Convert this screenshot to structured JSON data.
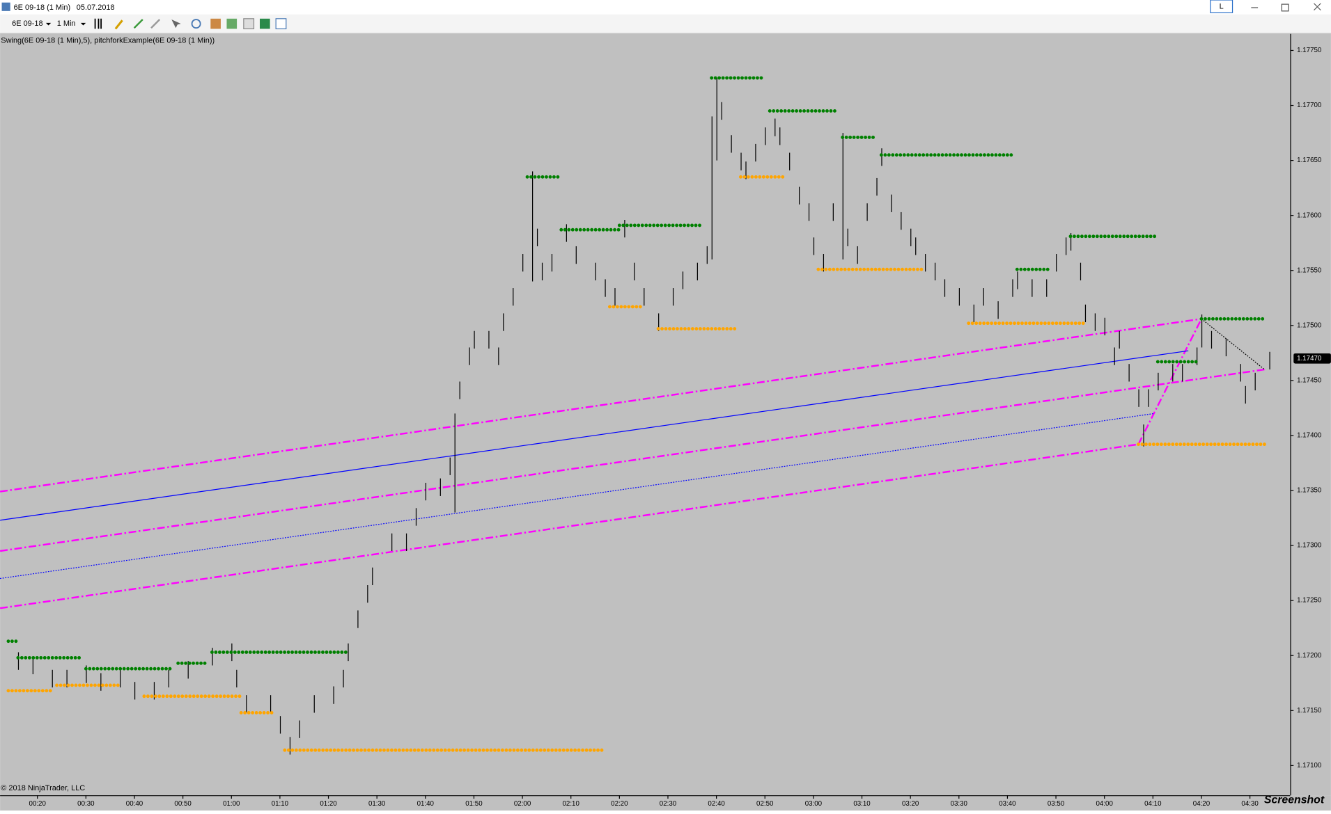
{
  "window": {
    "title": "6E 09-18 (1 Min)",
    "date": "05.07.2018",
    "button": "L"
  },
  "toolbar": {
    "instrument": "6E 09-18",
    "interval": "1 Min"
  },
  "indicators": "Swing(6E 09-18 (1 Min),5), pitchforkExample(6E 09-18 (1 Min))",
  "copyright": "© 2018 NinjaTrader, LLC",
  "watermark": "Screenshot",
  "chart_data": {
    "type": "ohlc",
    "background": "#c0c0c0",
    "bar_color": "#000000",
    "xlim": [
      12.3,
      278.3
    ],
    "ylim": [
      1.17073,
      1.17765
    ],
    "xticks": [
      {
        "value": 20,
        "label": "00:20"
      },
      {
        "value": 30,
        "label": "00:30"
      },
      {
        "value": 40,
        "label": "00:40"
      },
      {
        "value": 50,
        "label": "00:50"
      },
      {
        "value": 60,
        "label": "01:00"
      },
      {
        "value": 70,
        "label": "01:10"
      },
      {
        "value": 80,
        "label": "01:20"
      },
      {
        "value": 90,
        "label": "01:30"
      },
      {
        "value": 100,
        "label": "01:40"
      },
      {
        "value": 110,
        "label": "01:50"
      },
      {
        "value": 120,
        "label": "02:00"
      },
      {
        "value": 130,
        "label": "02:10"
      },
      {
        "value": 140,
        "label": "02:20"
      },
      {
        "value": 150,
        "label": "02:30"
      },
      {
        "value": 160,
        "label": "02:40"
      },
      {
        "value": 170,
        "label": "02:50"
      },
      {
        "value": 180,
        "label": "03:00"
      },
      {
        "value": 190,
        "label": "03:10"
      },
      {
        "value": 200,
        "label": "03:20"
      },
      {
        "value": 210,
        "label": "03:30"
      },
      {
        "value": 220,
        "label": "03:40"
      },
      {
        "value": 230,
        "label": "03:50"
      },
      {
        "value": 240,
        "label": "04:00"
      },
      {
        "value": 250,
        "label": "04:10"
      },
      {
        "value": 260,
        "label": "04:20"
      },
      {
        "value": 270,
        "label": "04:30"
      }
    ],
    "yticks": [
      {
        "value": 1.171,
        "label": "1.17100"
      },
      {
        "value": 1.1715,
        "label": "1.17150"
      },
      {
        "value": 1.172,
        "label": "1.17200"
      },
      {
        "value": 1.1725,
        "label": "1.17250"
      },
      {
        "value": 1.173,
        "label": "1.17300"
      },
      {
        "value": 1.1735,
        "label": "1.17350"
      },
      {
        "value": 1.174,
        "label": "1.17400"
      },
      {
        "value": 1.1745,
        "label": "1.17450"
      },
      {
        "value": 1.175,
        "label": "1.17500"
      },
      {
        "value": 1.1755,
        "label": "1.17550"
      },
      {
        "value": 1.176,
        "label": "1.17600"
      },
      {
        "value": 1.1765,
        "label": "1.17650"
      },
      {
        "value": 1.177,
        "label": "1.17700"
      },
      {
        "value": 1.1775,
        "label": "1.17750"
      }
    ],
    "last_price": {
      "value": 1.1747,
      "label": "1.17470"
    },
    "x": [
      16,
      19,
      23,
      26,
      30,
      33,
      37,
      40,
      44,
      47,
      51,
      56,
      60,
      61,
      63,
      68,
      70,
      72,
      74,
      77,
      81,
      83,
      84,
      86,
      88,
      89,
      93,
      96,
      98,
      100,
      103,
      105,
      106,
      107,
      109,
      110,
      113,
      115,
      116,
      118,
      120,
      122,
      123,
      124,
      126,
      129,
      131,
      135,
      137,
      139,
      141,
      143,
      145,
      148,
      151,
      153,
      156,
      158,
      159,
      160,
      161,
      163,
      165,
      166,
      168,
      170,
      172,
      173,
      175,
      177,
      179,
      180,
      182,
      184,
      186,
      187,
      189,
      191,
      193,
      194,
      196,
      198,
      200,
      201,
      203,
      205,
      207,
      210,
      213,
      215,
      218,
      221,
      222,
      225,
      228,
      230,
      232,
      233,
      235,
      236,
      238,
      240,
      242,
      243,
      245,
      247,
      248,
      249,
      251,
      254,
      256,
      259,
      260,
      262,
      265,
      268,
      269,
      271,
      274
    ],
    "high": [
      1.17203,
      1.17199,
      1.17187,
      1.17187,
      1.17191,
      1.17184,
      1.17187,
      1.17176,
      1.17176,
      1.17187,
      1.17195,
      1.17207,
      1.17211,
      1.17187,
      1.17164,
      1.17164,
      1.17145,
      1.17126,
      1.17141,
      1.17164,
      1.17172,
      1.17187,
      1.17211,
      1.17241,
      1.17264,
      1.1728,
      1.17311,
      1.17311,
      1.17334,
      1.17357,
      1.17361,
      1.1738,
      1.1742,
      1.17449,
      1.1748,
      1.17495,
      1.17495,
      1.1748,
      1.17511,
      1.17534,
      1.17565,
      1.1764,
      1.17588,
      1.17557,
      1.17565,
      1.17592,
      1.17572,
      1.17557,
      1.17542,
      1.17534,
      1.17596,
      1.17557,
      1.17534,
      1.17511,
      1.17534,
      1.17549,
      1.17557,
      1.17572,
      1.1769,
      1.17725,
      1.17703,
      1.17673,
      1.17657,
      1.17649,
      1.17665,
      1.1768,
      1.17688,
      1.1768,
      1.17657,
      1.17626,
      1.17611,
      1.1758,
      1.17565,
      1.17611,
      1.17675,
      1.17588,
      1.17572,
      1.17611,
      1.17634,
      1.17661,
      1.17619,
      1.17603,
      1.17588,
      1.1758,
      1.17565,
      1.17557,
      1.17542,
      1.17534,
      1.17519,
      1.17534,
      1.17522,
      1.17542,
      1.17549,
      1.17542,
      1.17542,
      1.17565,
      1.1758,
      1.17584,
      1.17557,
      1.17519,
      1.17511,
      1.17507,
      1.1748,
      1.17495,
      1.17465,
      1.17442,
      1.1741,
      1.17442,
      1.17457,
      1.17465,
      1.17465,
      1.1748,
      1.1751,
      1.17495,
      1.17488,
      1.17465,
      1.17445,
      1.17457,
      1.17476
    ],
    "low": [
      1.17187,
      1.17183,
      1.17171,
      1.17171,
      1.17175,
      1.17168,
      1.17171,
      1.1716,
      1.1716,
      1.17171,
      1.17179,
      1.17191,
      1.17195,
      1.17171,
      1.17148,
      1.17148,
      1.17129,
      1.1711,
      1.17125,
      1.17148,
      1.17156,
      1.17171,
      1.17195,
      1.17225,
      1.17248,
      1.17264,
      1.17295,
      1.17295,
      1.17318,
      1.17341,
      1.17345,
      1.17364,
      1.1733,
      1.17433,
      1.17464,
      1.17479,
      1.17479,
      1.17464,
      1.17495,
      1.17518,
      1.17549,
      1.1754,
      1.17572,
      1.17541,
      1.17549,
      1.17576,
      1.17556,
      1.17541,
      1.17526,
      1.17518,
      1.1758,
      1.17541,
      1.17518,
      1.17495,
      1.17518,
      1.17533,
      1.17541,
      1.17556,
      1.1756,
      1.1765,
      1.17687,
      1.17657,
      1.17641,
      1.17633,
      1.17649,
      1.17664,
      1.17672,
      1.17664,
      1.17641,
      1.1761,
      1.17595,
      1.17564,
      1.17549,
      1.17595,
      1.1756,
      1.17572,
      1.17556,
      1.17595,
      1.17618,
      1.17645,
      1.17603,
      1.17587,
      1.17572,
      1.17564,
      1.17549,
      1.17541,
      1.17526,
      1.17518,
      1.17503,
      1.17518,
      1.17506,
      1.17526,
      1.17533,
      1.17526,
      1.17526,
      1.17549,
      1.17564,
      1.17568,
      1.17541,
      1.17503,
      1.17495,
      1.17491,
      1.17464,
      1.17479,
      1.17449,
      1.17426,
      1.1739,
      1.17426,
      1.17441,
      1.17449,
      1.17449,
      1.17464,
      1.1748,
      1.17479,
      1.17472,
      1.17449,
      1.17429,
      1.17441,
      1.1746
    ],
    "swing_high_color": "#008000",
    "swing_low_color": "#ffa500",
    "swing_highs": [
      {
        "price": 1.17213,
        "from": 14,
        "to": 16
      },
      {
        "price": 1.17198,
        "from": 16,
        "to": 29
      },
      {
        "price": 1.17188,
        "from": 30,
        "to": 48
      },
      {
        "price": 1.17193,
        "from": 49,
        "to": 55
      },
      {
        "price": 1.17203,
        "from": 56,
        "to": 84
      },
      {
        "price": 1.17635,
        "from": 121,
        "to": 128
      },
      {
        "price": 1.17587,
        "from": 128,
        "to": 140
      },
      {
        "price": 1.17591,
        "from": 140,
        "to": 157
      },
      {
        "price": 1.17725,
        "from": 159,
        "to": 170
      },
      {
        "price": 1.17695,
        "from": 171,
        "to": 185
      },
      {
        "price": 1.17671,
        "from": 186,
        "to": 193
      },
      {
        "price": 1.17655,
        "from": 194,
        "to": 221
      },
      {
        "price": 1.17551,
        "from": 222,
        "to": 229
      },
      {
        "price": 1.17581,
        "from": 233,
        "to": 251
      },
      {
        "price": 1.17467,
        "from": 251,
        "to": 259
      },
      {
        "price": 1.17506,
        "from": 260,
        "to": 273
      }
    ],
    "swing_lows": [
      {
        "price": 1.17168,
        "from": 14,
        "to": 23
      },
      {
        "price": 1.17173,
        "from": 24,
        "to": 37
      },
      {
        "price": 1.17163,
        "from": 42,
        "to": 62
      },
      {
        "price": 1.17148,
        "from": 62,
        "to": 69
      },
      {
        "price": 1.17114,
        "from": 71,
        "to": 137
      },
      {
        "price": 1.17517,
        "from": 138,
        "to": 145
      },
      {
        "price": 1.17497,
        "from": 148,
        "to": 164
      },
      {
        "price": 1.17635,
        "from": 165,
        "to": 174
      },
      {
        "price": 1.17551,
        "from": 181,
        "to": 203
      },
      {
        "price": 1.17502,
        "from": 212,
        "to": 236
      },
      {
        "price": 1.17392,
        "from": 247,
        "to": 273
      }
    ],
    "pitchfork": [
      {
        "x": [
          12.3,
          260
        ],
        "y": [
          1.17349,
          1.17506
        ],
        "color": "#ff00ff",
        "style": "dashdot"
      },
      {
        "x": [
          12.3,
          273
        ],
        "y": [
          1.17295,
          1.1746
        ],
        "color": "#ff00ff",
        "style": "dashdot"
      },
      {
        "x": [
          12.3,
          247
        ],
        "y": [
          1.17243,
          1.17392
        ],
        "color": "#ff00ff",
        "style": "dashdot"
      },
      {
        "x": [
          247,
          260
        ],
        "y": [
          1.17392,
          1.17506
        ],
        "color": "#ff00ff",
        "style": "dashdot"
      },
      {
        "x": [
          260,
          273
        ],
        "y": [
          1.17506,
          1.1746
        ],
        "color": "#000000",
        "style": "dotted"
      },
      {
        "x": [
          12.3,
          257.3
        ],
        "y": [
          1.17323,
          1.17477
        ],
        "color": "#0000ff",
        "style": "solid"
      },
      {
        "x": [
          12.3,
          250.3
        ],
        "y": [
          1.1727,
          1.1742
        ],
        "color": "#0000ff",
        "style": "dotted"
      }
    ]
  }
}
